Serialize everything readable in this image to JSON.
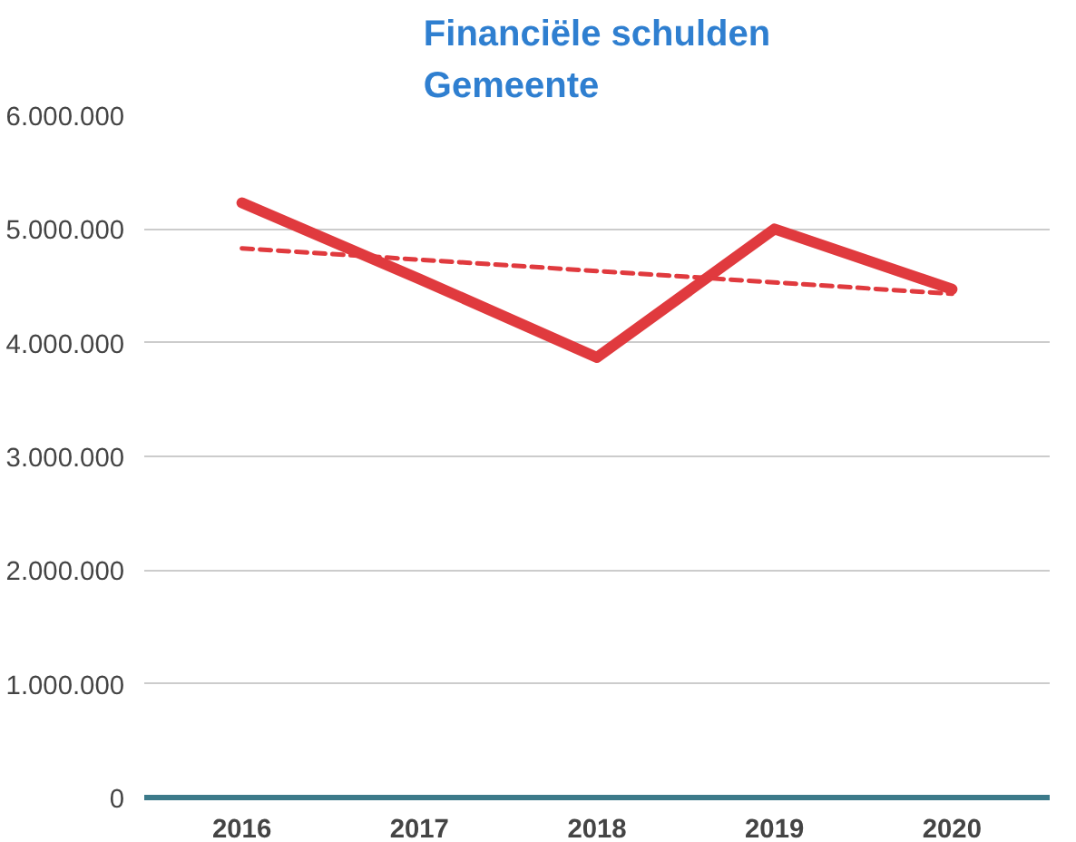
{
  "chart_data": {
    "type": "line",
    "title": "Financiële schulden\nGemeente",
    "categories": [
      "2016",
      "2017",
      "2018",
      "2019",
      "2020"
    ],
    "series": [
      {
        "color": "#e03a3e",
        "values": [
          5230000,
          4560000,
          3870000,
          5000000,
          4470000
        ],
        "line_style": "solid"
      },
      {
        "color": "#e03a3e",
        "values": [
          4830000,
          null,
          null,
          null,
          4430000
        ],
        "line_style": "dashed"
      }
    ],
    "ylim": [
      0,
      6000000
    ],
    "yticks": [
      {
        "value": 0,
        "label": "0"
      },
      {
        "value": 1000000,
        "label": "1.000.000"
      },
      {
        "value": 2000000,
        "label": "2.000.000"
      },
      {
        "value": 3000000,
        "label": "3.000.000"
      },
      {
        "value": 4000000,
        "label": "4.000.000"
      },
      {
        "value": 5000000,
        "label": "5.000.000"
      },
      {
        "value": 6000000,
        "label": "6.000.000"
      }
    ],
    "grid": "y",
    "marker": "none"
  }
}
